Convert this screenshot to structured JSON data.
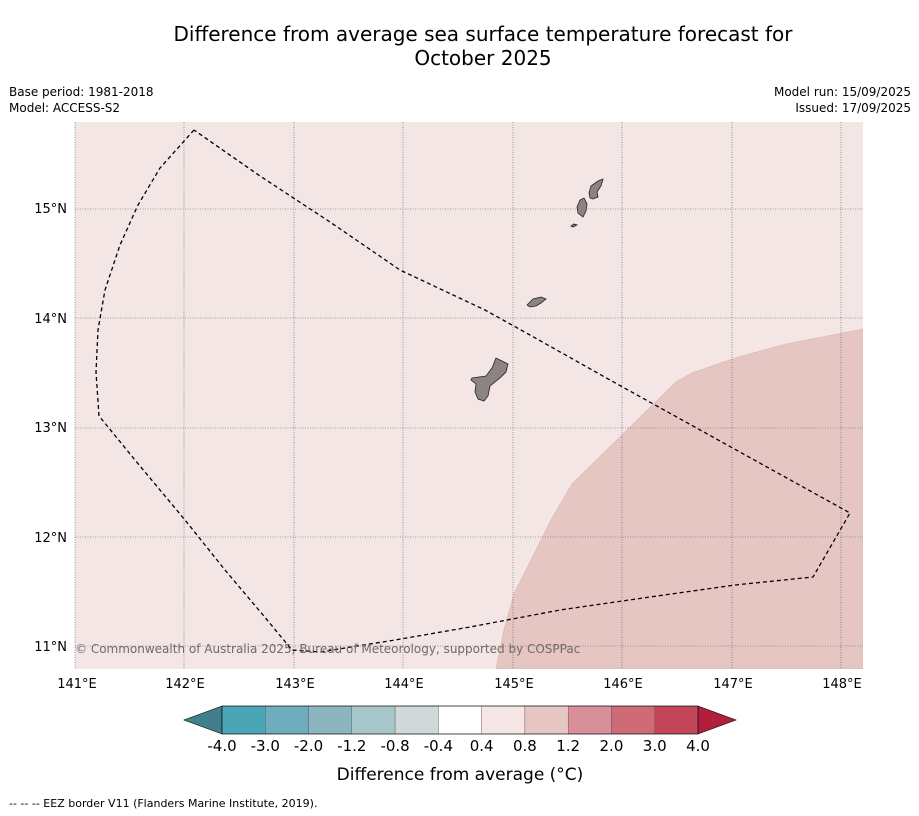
{
  "title": {
    "line1": "Difference from average sea surface temperature forecast for",
    "line2": "October 2025"
  },
  "meta": {
    "base_period": "Base period: 1981-2018",
    "model": "Model: ACCESS-S2",
    "model_run": "Model run: 15/09/2025",
    "issued": "Issued: 17/09/2025"
  },
  "map": {
    "lat_labels": [
      "11°N",
      "12°N",
      "13°N",
      "14°N",
      "15°N"
    ],
    "lon_labels": [
      "141°E",
      "142°E",
      "143°E",
      "144°E",
      "145°E",
      "146°E",
      "147°E",
      "148°E"
    ],
    "copyright": "© Commonwealth of Australia 2025, Bureau of Meteorology, supported by COSPPac",
    "colors": {
      "background_anomaly": "#f4e6e5",
      "warm_anomaly": "#e6c6c2",
      "land": "#8c8484",
      "eez_border": "#000000"
    }
  },
  "colorbar": {
    "tick_labels": [
      "-4.0",
      "-3.0",
      "-2.0",
      "-1.2",
      "-0.8",
      "-0.4",
      "0.4",
      "0.8",
      "1.2",
      "2.0",
      "3.0",
      "4.0"
    ],
    "colors": [
      "#4aa5b6",
      "#6eadbc",
      "#8cb5c0",
      "#a8c7cb",
      "#d0d8da",
      "#ffffff",
      "#f4e6e5",
      "#e6c6c2",
      "#d88f98",
      "#cf6a77",
      "#c24859"
    ],
    "under_color": "#417f8f",
    "over_color": "#b21f3c",
    "label": "Difference from average (°C)"
  },
  "footnote": "--  --  -- EEZ border V11 (Flanders Marine Institute, 2019)."
}
